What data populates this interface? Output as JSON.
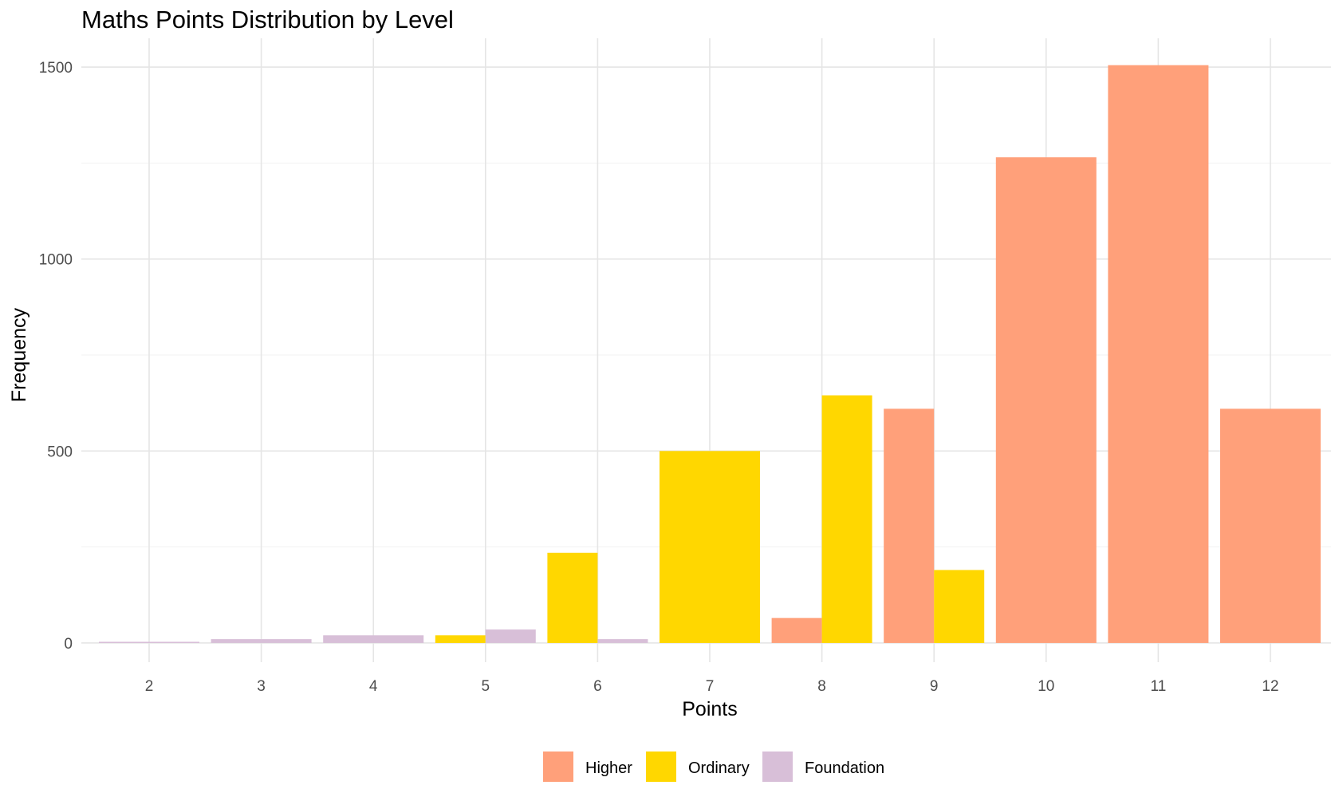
{
  "chart_data": {
    "type": "bar",
    "title": "Maths Points Distribution by Level",
    "xlabel": "Points",
    "ylabel": "Frequency",
    "categories": [
      "2",
      "3",
      "4",
      "5",
      "6",
      "7",
      "8",
      "9",
      "10",
      "11",
      "12"
    ],
    "series": [
      {
        "name": "Higher",
        "color": "#FFA07A",
        "values": [
          null,
          null,
          null,
          null,
          null,
          null,
          65,
          610,
          1265,
          1505,
          610
        ]
      },
      {
        "name": "Ordinary",
        "color": "#FFD700",
        "values": [
          null,
          null,
          null,
          20,
          235,
          500,
          645,
          190,
          null,
          null,
          null
        ]
      },
      {
        "name": "Foundation",
        "color": "#D8BFD8",
        "values": [
          3,
          10,
          20,
          35,
          10,
          null,
          null,
          null,
          null,
          null,
          null
        ]
      }
    ],
    "ylim": [
      -50,
      1575
    ],
    "yticks": [
      0,
      500,
      1000,
      1500
    ],
    "grid": true,
    "legend_position": "bottom"
  }
}
